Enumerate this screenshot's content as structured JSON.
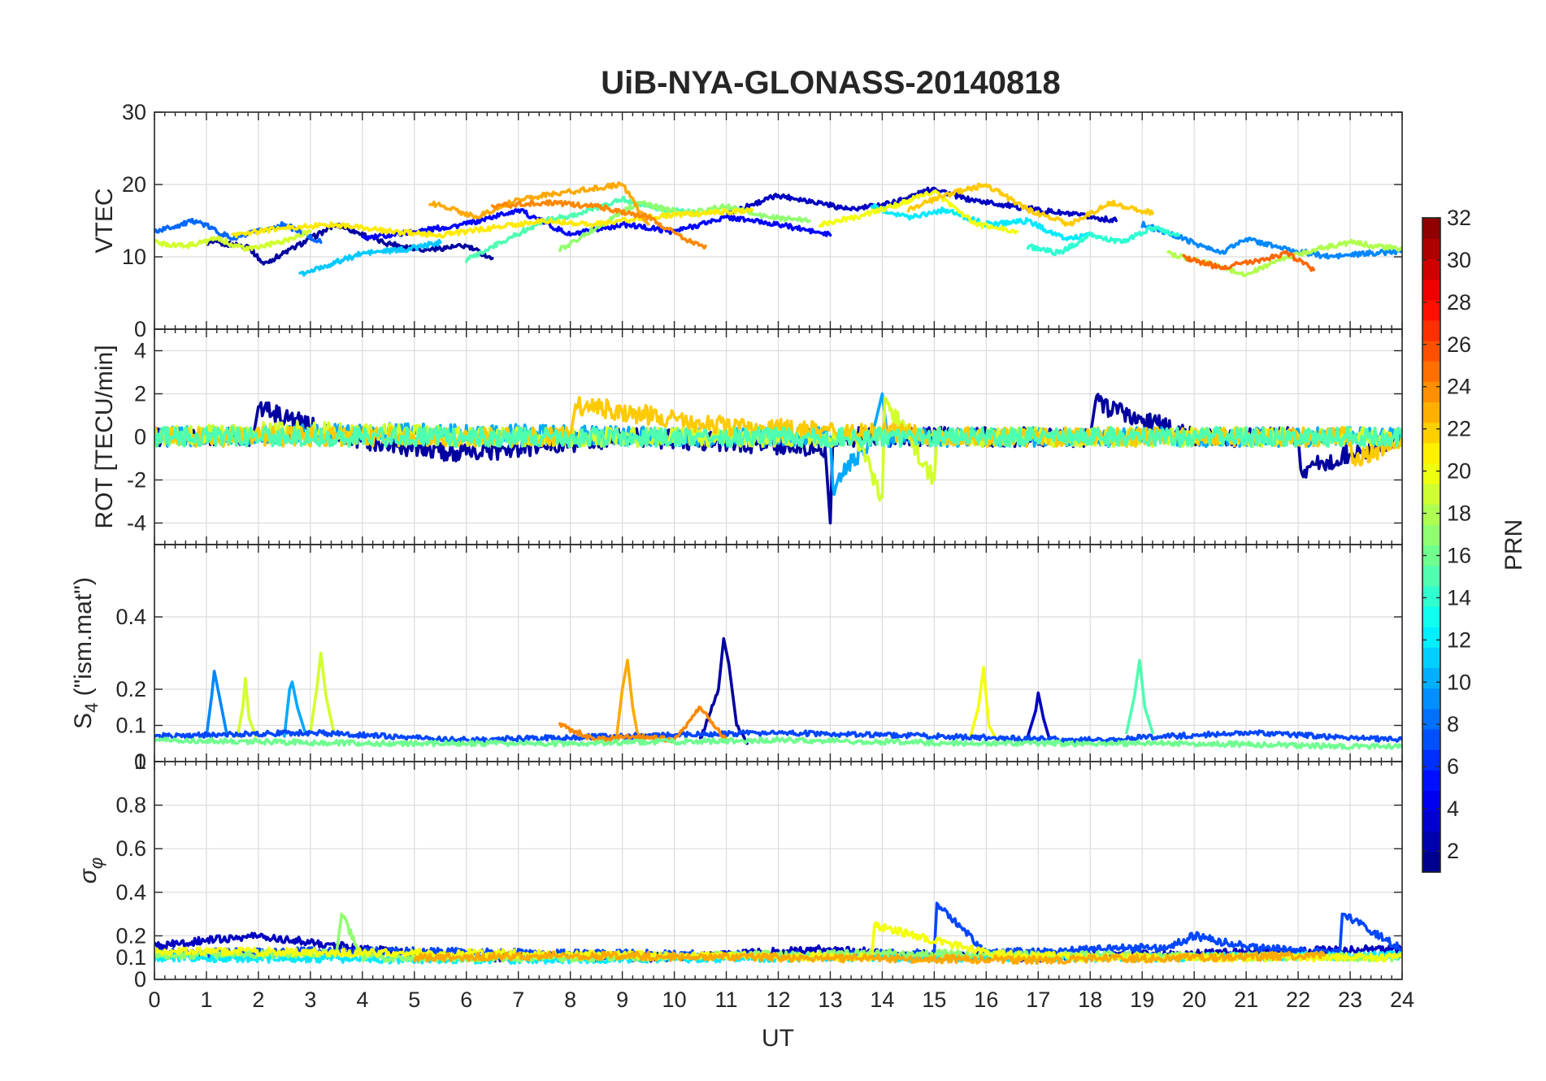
{
  "chart_data": {
    "type": "line",
    "title": "UiB-NYA-GLONASS-20140818",
    "xlabel": "UT",
    "xlim": [
      0,
      24
    ],
    "x_ticks": [
      "0",
      "1",
      "2",
      "3",
      "4",
      "5",
      "6",
      "7",
      "8",
      "9",
      "10",
      "11",
      "12",
      "13",
      "14",
      "15",
      "16",
      "17",
      "18",
      "19",
      "20",
      "21",
      "22",
      "23",
      "24"
    ],
    "panels": [
      {
        "id": "vtec",
        "ylabel": "VTEC",
        "ylim": [
          0,
          30
        ],
        "y_ticks": [
          "0",
          "10",
          "20",
          "30"
        ],
        "grid": true,
        "series": [
          {
            "prn": 2,
            "x": [
              1.0,
              1.8,
              2.1,
              3.0,
              3.5,
              4.4,
              5.2,
              6.0,
              6.5
            ],
            "y": [
              12,
              11.5,
              9.0,
              12.5,
              14.5,
              12.0,
              11.0,
              11.5,
              9.8
            ]
          },
          {
            "prn": 3,
            "x": [
              11.0,
              12.0,
              12.8,
              13.4,
              14.2,
              15.0,
              15.6,
              16.5,
              17.5,
              18.5
            ],
            "y": [
              16.0,
              18.5,
              17.5,
              16.5,
              17.5,
              19.5,
              18.0,
              17.0,
              16.0,
              15.0
            ]
          },
          {
            "prn": 5,
            "x": [
              4.0,
              5.0,
              6.0,
              7.0,
              8.0,
              9.0,
              10.0,
              11.0,
              12.0,
              13.0
            ],
            "y": [
              12.5,
              13.5,
              14.5,
              16.5,
              13.0,
              14.5,
              13.5,
              15.5,
              14.5,
              13.0
            ]
          },
          {
            "prn": 8,
            "x": [
              0.0,
              0.8,
              1.5,
              2.5,
              3.2
            ],
            "y": [
              13.5,
              15.0,
              12.5,
              14.5,
              12.0
            ]
          },
          {
            "prn": 9,
            "x": [
              19.0,
              19.8,
              20.5,
              21.0,
              21.8,
              22.6,
              23.4,
              24.0
            ],
            "y": [
              14.5,
              12.5,
              10.5,
              12.5,
              11.0,
              10.0,
              10.5,
              10.8
            ]
          },
          {
            "prn": 11,
            "x": [
              2.8,
              3.4,
              4.0,
              4.8,
              5.5
            ],
            "y": [
              7.5,
              9.0,
              10.5,
              11.0,
              12.0
            ]
          },
          {
            "prn": 12,
            "x": [
              13.8,
              14.5,
              15.2,
              16.0,
              16.8,
              17.5,
              18.0
            ],
            "y": [
              17.0,
              15.5,
              16.5,
              14.5,
              15.0,
              12.5,
              13.0
            ]
          },
          {
            "prn": 14,
            "x": [
              16.8,
              17.4,
              18.0,
              18.6,
              19.2,
              19.7
            ],
            "y": [
              11.5,
              10.5,
              13.0,
              12.0,
              14.0,
              13.0
            ]
          },
          {
            "prn": 15,
            "x": [
              6.0,
              6.8,
              7.5,
              8.2,
              9.0,
              9.8,
              10.5
            ],
            "y": [
              9.5,
              12.5,
              15.0,
              16.0,
              18.0,
              16.5,
              16.0
            ]
          },
          {
            "prn": 17,
            "x": [
              7.8,
              8.5,
              9.3,
              10.2,
              11.0,
              11.8,
              12.6
            ],
            "y": [
              11.0,
              14.0,
              17.5,
              16.0,
              17.0,
              15.5,
              15.0
            ]
          },
          {
            "prn": 18,
            "x": [
              19.5,
              20.3,
              21.0,
              21.6,
              22.3,
              23.0,
              24.0
            ],
            "y": [
              10.5,
              9.0,
              7.5,
              9.5,
              11.0,
              12.0,
              11.0
            ]
          },
          {
            "prn": 19,
            "x": [
              0.0,
              0.6,
              1.2,
              1.8,
              2.4,
              3.0
            ],
            "y": [
              12.0,
              11.5,
              12.5,
              11.0,
              12.0,
              13.5
            ]
          },
          {
            "prn": 20,
            "x": [
              12.8,
              13.5,
              14.2,
              15.0,
              15.8,
              16.6
            ],
            "y": [
              14.5,
              15.5,
              17.0,
              19.0,
              14.5,
              13.5
            ]
          },
          {
            "prn": 21,
            "x": [
              1.5,
              2.5,
              3.5,
              4.5,
              5.5,
              6.5,
              7.5,
              8.5,
              9.5,
              10.5,
              11.5
            ],
            "y": [
              13.0,
              14.0,
              14.5,
              13.5,
              13.0,
              14.0,
              15.0,
              14.5,
              15.5,
              16.0,
              16.5
            ]
          },
          {
            "prn": 22,
            "x": [
              14.5,
              15.2,
              16.0,
              16.8,
              17.6,
              18.4,
              19.2
            ],
            "y": [
              16.5,
              18.5,
              20.0,
              16.5,
              14.5,
              17.5,
              16.0
            ]
          },
          {
            "prn": 23,
            "x": [
              5.3,
              6.2,
              7.0,
              8.0,
              9.0,
              9.5
            ],
            "y": [
              17.5,
              15.5,
              18.0,
              19.0,
              20.0,
              14.5
            ]
          },
          {
            "prn": 24,
            "x": [
              6.5,
              7.5,
              8.5,
              9.5,
              10.2,
              10.6
            ],
            "y": [
              17.0,
              17.5,
              17.0,
              15.5,
              12.5,
              11.5
            ]
          },
          {
            "prn": 25,
            "x": [
              19.8,
              20.5,
              21.2,
              21.8,
              22.3
            ],
            "y": [
              10.0,
              8.5,
              9.5,
              10.5,
              8.2
            ]
          }
        ]
      },
      {
        "id": "rot",
        "ylabel": "ROT [TECU/min]",
        "ylim": [
          -5,
          5
        ],
        "y_ticks": [
          "-4",
          "-2",
          "0",
          "2",
          "4"
        ],
        "grid": true,
        "series": [
          {
            "prn": 2,
            "x": [
              0.0,
              1.9,
              2.0,
              3.5,
              6.0,
              9.0,
              12.9,
              13.0,
              13.05,
              15.5,
              18.0,
              18.1,
              20.0,
              22.0,
              22.05,
              24.0
            ],
            "y": [
              0.0,
              0.0,
              1.4,
              0.0,
              -0.8,
              0.0,
              -0.5,
              -4.0,
              0.0,
              0.0,
              0.0,
              1.6,
              0.0,
              0.0,
              -1.5,
              0.0
            ]
          },
          {
            "prn": 10,
            "x": [
              0.0,
              5.0,
              10.0,
              13.0,
              13.05,
              13.8,
              14.0,
              14.1,
              19.0,
              24.0
            ],
            "y": [
              0.0,
              0.2,
              0.0,
              0.0,
              -2.3,
              0.0,
              2.0,
              0.0,
              0.0,
              0.0
            ]
          },
          {
            "prn": 19,
            "x": [
              0.0,
              3.0,
              6.0,
              9.0,
              13.5,
              14.0,
              14.05,
              14.5,
              15.0,
              15.05,
              15.5,
              19.0,
              24.0
            ],
            "y": [
              0.0,
              0.3,
              0.0,
              0.0,
              0.0,
              -2.8,
              1.8,
              0.0,
              -2.0,
              0.0,
              0.0,
              0.0,
              0.0
            ]
          },
          {
            "prn": 22,
            "x": [
              0.0,
              4.0,
              8.0,
              8.1,
              11.0,
              16.0,
              20.0,
              23.0,
              23.05,
              24.0
            ],
            "y": [
              0.0,
              0.0,
              0.0,
              1.5,
              0.5,
              0.0,
              0.0,
              0.0,
              -1.2,
              0.0
            ]
          },
          {
            "prn": 15,
            "x": [
              0.0,
              6.0,
              12.0,
              18.0,
              24.0
            ],
            "y": [
              0.0,
              0.0,
              0.0,
              0.0,
              0.0
            ]
          }
        ]
      },
      {
        "id": "s4",
        "ylabel": "S4 (\"ism.mat\")",
        "ylim": [
          0,
          0.6
        ],
        "y_ticks": [
          "0",
          "0.1",
          "0.2",
          "0.4"
        ],
        "grid": true,
        "series": [
          {
            "prn": 2,
            "x": [
              10.5,
              10.85,
              10.95,
              11.05,
              11.2,
              11.4
            ],
            "y": [
              0.06,
              0.2,
              0.34,
              0.27,
              0.1,
              0.05
            ]
          },
          {
            "prn": 9,
            "x": [
              1.0,
              1.1,
              1.15,
              1.25,
              1.4
            ],
            "y": [
              0.07,
              0.18,
              0.25,
              0.18,
              0.07
            ]
          },
          {
            "prn": 10,
            "x": [
              2.5,
              2.6,
              2.65,
              2.75,
              2.9
            ],
            "y": [
              0.07,
              0.2,
              0.22,
              0.15,
              0.08
            ]
          },
          {
            "prn": 19,
            "x": [
              3.0,
              3.12,
              3.2,
              3.3,
              3.45
            ],
            "y": [
              0.08,
              0.2,
              0.3,
              0.18,
              0.08
            ]
          },
          {
            "prn": 19,
            "x": [
              1.6,
              1.7,
              1.75,
              1.82,
              1.95
            ],
            "y": [
              0.07,
              0.15,
              0.23,
              0.12,
              0.07
            ]
          },
          {
            "prn": 23,
            "x": [
              8.9,
              9.0,
              9.1,
              9.2,
              9.3
            ],
            "y": [
              0.08,
              0.2,
              0.28,
              0.15,
              0.07
            ]
          },
          {
            "prn": 20,
            "x": [
              15.7,
              15.85,
              15.95,
              16.05,
              16.2
            ],
            "y": [
              0.07,
              0.15,
              0.26,
              0.1,
              0.06
            ]
          },
          {
            "prn": 15,
            "x": [
              18.7,
              18.85,
              18.95,
              19.05,
              19.2
            ],
            "y": [
              0.08,
              0.18,
              0.28,
              0.15,
              0.08
            ]
          },
          {
            "prn": 3,
            "x": [
              16.8,
              16.95,
              17.0,
              17.1,
              17.2
            ],
            "y": [
              0.07,
              0.14,
              0.19,
              0.12,
              0.07
            ]
          },
          {
            "prn": 7,
            "x": [
              0.0,
              3.0,
              6.0,
              9.0,
              12.0,
              15.0,
              18.0,
              21.0,
              24.0
            ],
            "y": [
              0.07,
              0.08,
              0.06,
              0.07,
              0.08,
              0.07,
              0.06,
              0.08,
              0.06
            ]
          },
          {
            "prn": 24,
            "x": [
              7.8,
              8.5,
              9.2,
              10.0,
              10.5,
              11.0
            ],
            "y": [
              0.1,
              0.06,
              0.07,
              0.06,
              0.15,
              0.06
            ]
          },
          {
            "prn": 16,
            "x": [
              0.0,
              4.0,
              8.0,
              12.0,
              16.0,
              20.0,
              24.0
            ],
            "y": [
              0.06,
              0.05,
              0.05,
              0.06,
              0.05,
              0.05,
              0.04
            ]
          }
        ]
      },
      {
        "id": "sigma",
        "ylabel": "σφ",
        "ylim": [
          0,
          1
        ],
        "y_ticks": [
          "0",
          "0.1",
          "0.2",
          "0.4",
          "0.6",
          "0.8",
          "1"
        ],
        "grid": true,
        "series": [
          {
            "prn": 3,
            "x": [
              0.0,
              1.0,
              2.0,
              3.0,
              4.0,
              5.0,
              6.0,
              10.0,
              13.0,
              14.0,
              17.0,
              20.0,
              24.0
            ],
            "y": [
              0.15,
              0.18,
              0.2,
              0.17,
              0.14,
              0.12,
              0.1,
              0.1,
              0.14,
              0.12,
              0.1,
              0.12,
              0.14
            ]
          },
          {
            "prn": 7,
            "x": [
              0.0,
              4.0,
              8.0,
              12.0,
              15.0,
              15.05,
              16.0,
              19.5,
              20.0,
              21.0,
              22.8,
              22.85,
              24.0
            ],
            "y": [
              0.12,
              0.13,
              0.12,
              0.11,
              0.12,
              0.35,
              0.12,
              0.15,
              0.2,
              0.15,
              0.12,
              0.3,
              0.14
            ]
          },
          {
            "prn": 12,
            "x": [
              0.0,
              6.0,
              12.0,
              18.0,
              24.0
            ],
            "y": [
              0.1,
              0.09,
              0.1,
              0.1,
              0.11
            ]
          },
          {
            "prn": 17,
            "x": [
              0.0,
              3.5,
              3.6,
              4.0,
              8.0,
              14.0,
              18.0,
              24.0
            ],
            "y": [
              0.11,
              0.12,
              0.3,
              0.1,
              0.1,
              0.12,
              0.11,
              0.1
            ]
          },
          {
            "prn": 20,
            "x": [
              0.0,
              6.0,
              13.8,
              13.85,
              16.0,
              18.0,
              24.0
            ],
            "y": [
              0.13,
              0.12,
              0.1,
              0.25,
              0.12,
              0.1,
              0.1
            ]
          },
          {
            "prn": 23,
            "x": [
              5.0,
              8.0,
              12.0,
              17.0,
              20.0,
              22.5
            ],
            "y": [
              0.1,
              0.11,
              0.1,
              0.09,
              0.1,
              0.11
            ]
          }
        ]
      }
    ],
    "colorbar": {
      "label": "PRN",
      "colormap": "jet",
      "range": [
        1,
        32
      ],
      "ticks": [
        "2",
        "4",
        "6",
        "8",
        "10",
        "12",
        "14",
        "16",
        "18",
        "20",
        "22",
        "24",
        "26",
        "28",
        "30",
        "32"
      ]
    }
  }
}
